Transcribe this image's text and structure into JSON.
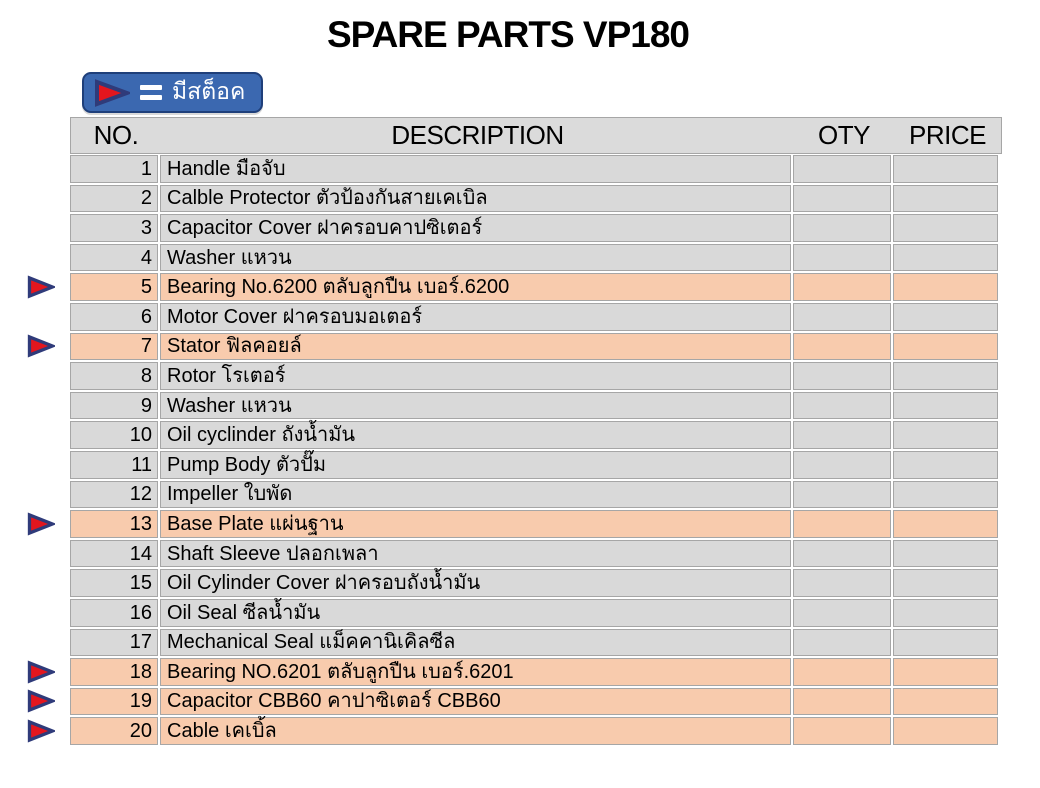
{
  "title": "SPARE PARTS VP180",
  "legend": {
    "symbol": "stock-arrow",
    "separator": "=",
    "label": "มีสต็อค"
  },
  "colors": {
    "highlight": "#F8CBAD",
    "row_gray": "#D9D9D9",
    "grid": "#A6A6A6",
    "header_bg": "#DBDBDB",
    "legend_blue": "#3B68B0",
    "legend_border": "#1F3F7A",
    "arrow_red": "#E3161E",
    "arrow_outline": "#2F3B7A",
    "text": "#000000",
    "legend_text": "#FFFFFF"
  },
  "table": {
    "columns": [
      "NO.",
      "DESCRIPTION",
      "OTY",
      "PRICE"
    ],
    "rows": [
      {
        "no": "1",
        "description": "Handle มือจับ",
        "qty": "",
        "price": "",
        "in_stock": false
      },
      {
        "no": "2",
        "description": "Calble Protector ตัวป้องกันสายเคเบิล",
        "qty": "",
        "price": "",
        "in_stock": false
      },
      {
        "no": "3",
        "description": "Capacitor Cover ฝาครอบคาปซิเตอร์",
        "qty": "",
        "price": "",
        "in_stock": false
      },
      {
        "no": "4",
        "description": "Washer แหวน",
        "qty": "",
        "price": "",
        "in_stock": false
      },
      {
        "no": "5",
        "description": "Bearing No.6200 ตลับลูกปืน เบอร์.6200",
        "qty": "",
        "price": "",
        "in_stock": true
      },
      {
        "no": "6",
        "description": "Motor Cover ฝาครอบมอเตอร์",
        "qty": "",
        "price": "",
        "in_stock": false
      },
      {
        "no": "7",
        "description": "Stator ฟิลคอยล์",
        "qty": "",
        "price": "",
        "in_stock": true
      },
      {
        "no": "8",
        "description": "Rotor โรเตอร์",
        "qty": "",
        "price": "",
        "in_stock": false
      },
      {
        "no": "9",
        "description": "Washer แหวน",
        "qty": "",
        "price": "",
        "in_stock": false
      },
      {
        "no": "10",
        "description": "Oil cyclinder ถังน้ำมัน",
        "qty": "",
        "price": "",
        "in_stock": false
      },
      {
        "no": "11",
        "description": "Pump Body ตัวปั๊ม",
        "qty": "",
        "price": "",
        "in_stock": false
      },
      {
        "no": "12",
        "description": "Impeller ใบพัด",
        "qty": "",
        "price": "",
        "in_stock": false
      },
      {
        "no": "13",
        "description": "Base Plate แผ่นฐาน",
        "qty": "",
        "price": "",
        "in_stock": true
      },
      {
        "no": "14",
        "description": "Shaft Sleeve ปลอกเพลา",
        "qty": "",
        "price": "",
        "in_stock": false
      },
      {
        "no": "15",
        "description": "Oil Cylinder Cover ฝาครอบถังน้ำมัน",
        "qty": "",
        "price": "",
        "in_stock": false
      },
      {
        "no": "16",
        "description": "Oil Seal ซีลน้ำมัน",
        "qty": "",
        "price": "",
        "in_stock": false
      },
      {
        "no": "17",
        "description": "Mechanical Seal แม็คคานิเคิลซีล",
        "qty": "",
        "price": "",
        "in_stock": false
      },
      {
        "no": "18",
        "description": "Bearing  NO.6201 ตลับลูกปืน เบอร์.6201",
        "qty": "",
        "price": "",
        "in_stock": true
      },
      {
        "no": "19",
        "description": "Capacitor  CBB60 คาปาซิเตอร์ CBB60",
        "qty": "",
        "price": "",
        "in_stock": true
      },
      {
        "no": "20",
        "description": "Cable เคเบิ้ล",
        "qty": "",
        "price": "",
        "in_stock": true
      }
    ]
  }
}
